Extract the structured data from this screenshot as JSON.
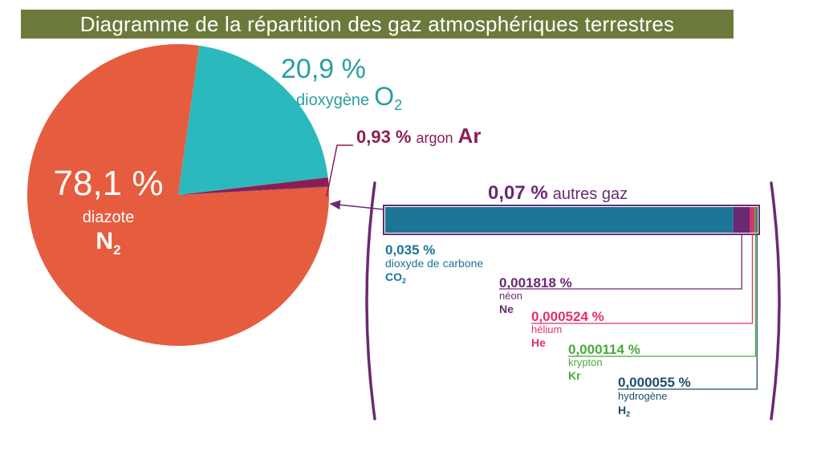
{
  "chart_data": [
    {
      "type": "pie",
      "title": "Diagramme de la répartition des gaz atmosphériques terrestres",
      "slices": [
        {
          "percent_label": "78,1 %",
          "value": 78.1,
          "name": "diazote",
          "formula": "N",
          "formula_sub": "2",
          "color": "#e65c3f"
        },
        {
          "percent_label": "20,9 %",
          "value": 20.9,
          "name": "dioxygène",
          "formula": "O",
          "formula_sub": "2",
          "color": "#2cb9bd"
        },
        {
          "percent_label": "0,93 %",
          "value": 0.93,
          "name": "argon",
          "formula": "Ar",
          "formula_sub": "",
          "color": "#8b1d55"
        },
        {
          "percent_label": "",
          "value": 0.07,
          "name": "",
          "formula": "",
          "formula_sub": "",
          "color": "#6a2a72"
        }
      ]
    },
    {
      "type": "bar",
      "stacked": true,
      "title_percent": "0,07 %",
      "title_text": "autres gaz",
      "total": 0.07,
      "segments": [
        {
          "percent_label": "0,035 %",
          "value": 0.035,
          "name": "dioxyde de carbone",
          "formula": "CO",
          "formula_sub": "2",
          "color": "#1b7597",
          "label_color": "#1b7597"
        },
        {
          "percent_label": "0,001818 %",
          "value": 0.001818,
          "name": "néon",
          "formula": "Ne",
          "formula_sub": "",
          "color": "#6a2a72",
          "label_color": "#6a2a72"
        },
        {
          "percent_label": "0,000524 %",
          "value": 0.000524,
          "name": "hélium",
          "formula": "He",
          "formula_sub": "",
          "color": "#e0306a",
          "label_color": "#e0306a"
        },
        {
          "percent_label": "0,000114 %",
          "value": 0.000114,
          "name": "krypton",
          "formula": "Kr",
          "formula_sub": "",
          "color": "#4aa83c",
          "label_color": "#4aa83c"
        },
        {
          "percent_label": "0,000055 %",
          "value": 5.5e-05,
          "name": "hydrogène",
          "formula": "H",
          "formula_sub": "2",
          "color": "#1d4f6b",
          "label_color": "#1d4f6b"
        }
      ]
    }
  ],
  "colors": {
    "title_bg": "#6b7a3a",
    "title_text": "#ffffff",
    "bracket": "#6a2a72",
    "other_gases_label": "#6a2a72"
  }
}
